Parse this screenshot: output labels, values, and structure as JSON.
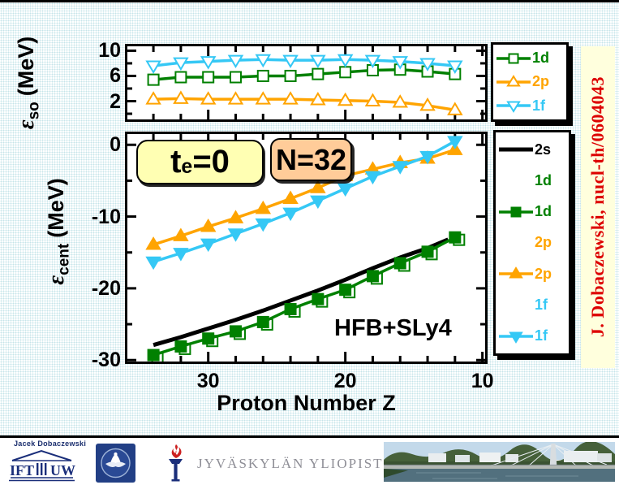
{
  "slide": {
    "credit_vertical": "J. Dobaczewski, nucl-th/0604043",
    "annotations": {
      "te_base": "t",
      "te_sub": "e",
      "te_rest": "=0",
      "n_label": "N=32",
      "model_label": "HFB+SLy4"
    },
    "colors": {
      "green": "#008000",
      "orange": "#ffa400",
      "cyan": "#35c8f5",
      "black": "#000000",
      "yellow_box": "#ffffb3",
      "peach_box": "#ffcc99",
      "credit_red": "#dd0000",
      "credit_bg": "#ffffdd"
    }
  },
  "legend_top": {
    "items": [
      {
        "label": "1d",
        "color": "#008000",
        "marker": "square",
        "filled": false,
        "has_line": true
      },
      {
        "label": "2p",
        "color": "#ffa400",
        "marker": "triangle-up",
        "filled": false,
        "has_line": true
      },
      {
        "label": "1f",
        "color": "#35c8f5",
        "marker": "triangle-down",
        "filled": false,
        "has_line": true
      }
    ]
  },
  "legend_bottom": {
    "items": [
      {
        "label": "2s",
        "color": "#000000",
        "marker": "none",
        "filled": false,
        "has_line": true
      },
      {
        "label": "1d",
        "color": "#008000",
        "marker": "none",
        "filled": false,
        "has_line": false
      },
      {
        "label": "1d",
        "color": "#008000",
        "marker": "square",
        "filled": true,
        "has_line": true
      },
      {
        "label": "2p",
        "color": "#ffa400",
        "marker": "none",
        "filled": false,
        "has_line": false
      },
      {
        "label": "2p",
        "color": "#ffa400",
        "marker": "triangle-up",
        "filled": true,
        "has_line": true
      },
      {
        "label": "1f",
        "color": "#35c8f5",
        "marker": "none",
        "filled": false,
        "has_line": false
      },
      {
        "label": "1f",
        "color": "#35c8f5",
        "marker": "triangle-down",
        "filled": true,
        "has_line": true
      }
    ]
  },
  "footer": {
    "credit": "Jacek Dobaczewski",
    "ift_label": "IFT",
    "uw_label": "UW",
    "university": "JYVÄSKYLÄN YLIOPISTO"
  },
  "chart_data": [
    {
      "panel": "top",
      "type": "line",
      "title": "",
      "ylabel": {
        "sym": "ε",
        "sub": "so",
        "unit": "(MeV)"
      },
      "xlabel": "",
      "xlim": [
        35.9,
        9.8
      ],
      "ylim": [
        -0.9,
        10.7
      ],
      "x": [
        34,
        32,
        30,
        28,
        26,
        24,
        22,
        20,
        18,
        16,
        14,
        12
      ],
      "xticks_major": [
        30,
        20,
        10
      ],
      "xticks_minor": [
        34,
        32,
        28,
        26,
        24,
        22,
        18,
        16,
        14,
        12
      ],
      "xtick_labels": [],
      "yticks_major": [
        10,
        6,
        2
      ],
      "ytick_labels": [
        "10",
        "6",
        "2"
      ],
      "yticks_minor": [
        8,
        4,
        0
      ],
      "grid": false,
      "series": [
        {
          "name": "1d",
          "color": "#008000",
          "marker": "square",
          "filled": false,
          "values": [
            5.4,
            5.8,
            5.8,
            5.8,
            6.0,
            6.0,
            6.3,
            6.6,
            6.9,
            7.0,
            6.7,
            6.3
          ]
        },
        {
          "name": "2p",
          "color": "#ffa400",
          "marker": "triangle-up",
          "filled": false,
          "values": [
            2.3,
            2.4,
            2.3,
            2.3,
            2.3,
            2.3,
            2.2,
            2.1,
            2.0,
            1.8,
            1.3,
            0.6
          ]
        },
        {
          "name": "1f",
          "color": "#35c8f5",
          "marker": "triangle-down",
          "filled": false,
          "values": [
            7.6,
            8.1,
            8.3,
            8.5,
            8.6,
            8.5,
            8.5,
            8.6,
            8.5,
            8.3,
            8.0,
            7.6
          ]
        }
      ]
    },
    {
      "panel": "bottom",
      "type": "line",
      "title": "",
      "ylabel": {
        "sym": "ε",
        "sub": "cent",
        "unit": "(MeV)"
      },
      "xlabel": "Proton Number Z",
      "xlim": [
        35.9,
        9.8
      ],
      "ylim": [
        -30.2,
        1.5
      ],
      "x": [
        34,
        32,
        30,
        28,
        26,
        24,
        22,
        20,
        18,
        16,
        14,
        12
      ],
      "xticks_major": [
        30,
        20,
        10
      ],
      "xtick_labels": [
        "30",
        "20",
        "10"
      ],
      "xticks_minor": [
        34,
        32,
        28,
        26,
        24,
        22,
        18,
        16,
        14,
        12
      ],
      "yticks_major": [
        0,
        -10,
        -20,
        -30
      ],
      "ytick_labels": [
        "0",
        "-10",
        "-20",
        "-30"
      ],
      "yticks_minor": [
        -5,
        -15,
        -25
      ],
      "grid": false,
      "series": [
        {
          "name": "2s",
          "color": "#000000",
          "marker": "none",
          "filled": false,
          "width": 5,
          "x": [
            34,
            32,
            30,
            28,
            26,
            24,
            22,
            20,
            18,
            16,
            14,
            12.5
          ],
          "values": [
            -27.9,
            -26.8,
            -25.6,
            -24.4,
            -23.1,
            -21.7,
            -20.3,
            -18.8,
            -17.2,
            -15.7,
            -14.4,
            -13.2
          ]
        },
        {
          "name": "1d",
          "color": "#008000",
          "marker": "square",
          "filled": true,
          "ghost": true,
          "values": [
            -29.3,
            -28.1,
            -27.0,
            -26.0,
            -24.7,
            -22.9,
            -21.5,
            -20.2,
            -18.3,
            -16.5,
            -14.9,
            -12.9
          ]
        },
        {
          "name": "2p",
          "color": "#ffa400",
          "marker": "triangle-up",
          "filled": true,
          "values": [
            -13.9,
            -12.7,
            -11.4,
            -10.2,
            -8.9,
            -7.5,
            -6.0,
            -4.3,
            -3.4,
            -2.5,
            -1.9,
            -0.7
          ]
        },
        {
          "name": "1f",
          "color": "#35c8f5",
          "marker": "triangle-down",
          "filled": true,
          "values": [
            -16.3,
            -15.1,
            -13.8,
            -12.4,
            -11.0,
            -9.5,
            -7.8,
            -6.1,
            -4.4,
            -3.0,
            -1.6,
            0.5
          ]
        }
      ]
    }
  ]
}
